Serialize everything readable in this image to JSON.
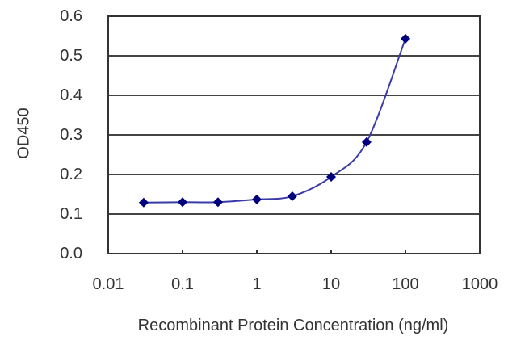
{
  "chart_data": {
    "type": "line",
    "title": "",
    "xlabel": "Recombinant Protein Concentration (ng/ml)",
    "ylabel": "OD450",
    "xscale": "log",
    "xlim": [
      0.01,
      1000
    ],
    "ylim": [
      0.0,
      0.6
    ],
    "x_tick_labels": [
      "0.01",
      "0.1",
      "1",
      "10",
      "100",
      "1000"
    ],
    "y_tick_labels": [
      "0.0",
      "0.1",
      "0.2",
      "0.3",
      "0.4",
      "0.5",
      "0.6"
    ],
    "grid": {
      "horizontal": true,
      "vertical": false
    },
    "legend": null,
    "series": [
      {
        "name": "OD450",
        "x": [
          0.03,
          0.1,
          0.3,
          1,
          3,
          10,
          30,
          100
        ],
        "values": [
          0.129,
          0.13,
          0.13,
          0.137,
          0.145,
          0.194,
          0.282,
          0.543
        ],
        "marker": "diamond",
        "smooth": true
      }
    ]
  },
  "colors": {
    "line": "#3b3ba8",
    "marker": "#00007f",
    "axis": "#333333",
    "grid": "#444444",
    "text": "#333333"
  }
}
